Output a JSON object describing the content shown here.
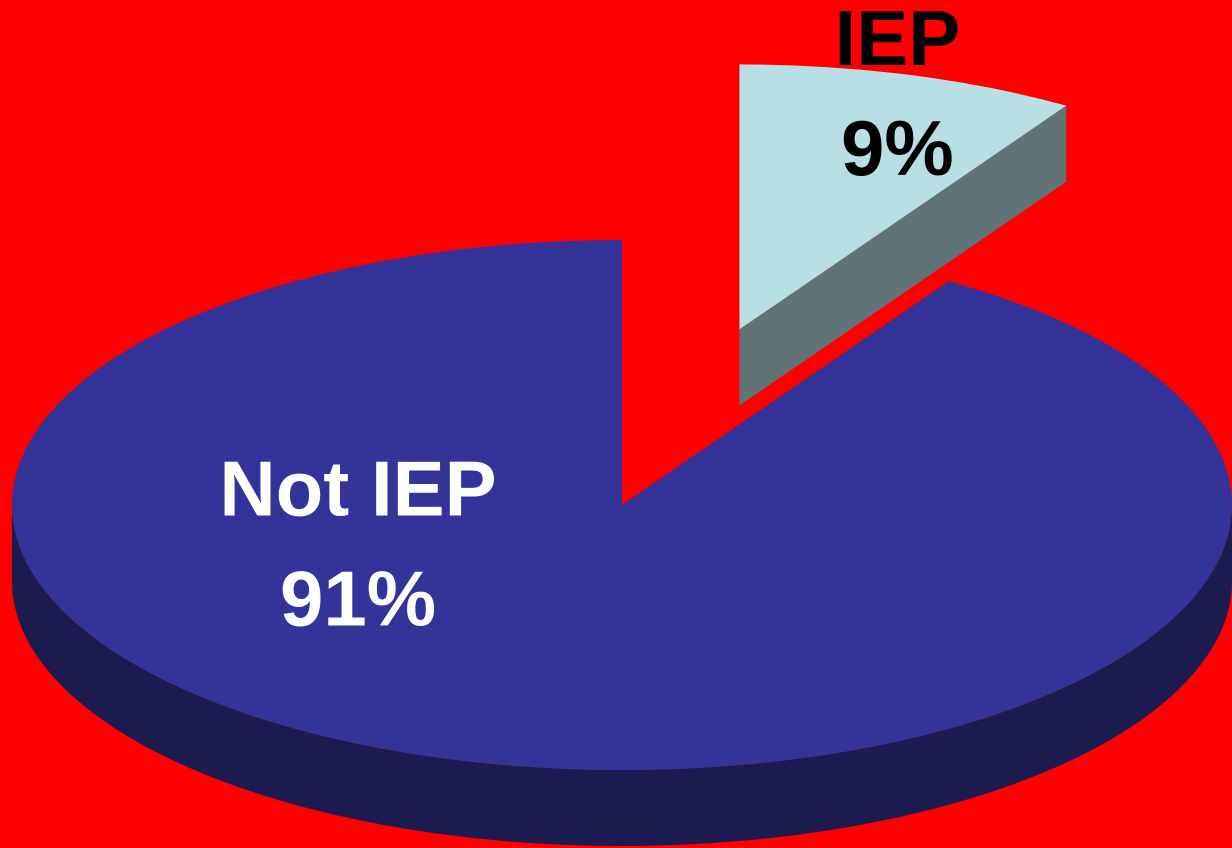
{
  "chart_data": {
    "type": "pie",
    "categories": [
      "IEP",
      "Not IEP"
    ],
    "values": [
      9,
      91
    ],
    "value_labels": [
      "9%",
      "91%"
    ],
    "colors": [
      "#b8e0e4",
      "#333399"
    ]
  }
}
